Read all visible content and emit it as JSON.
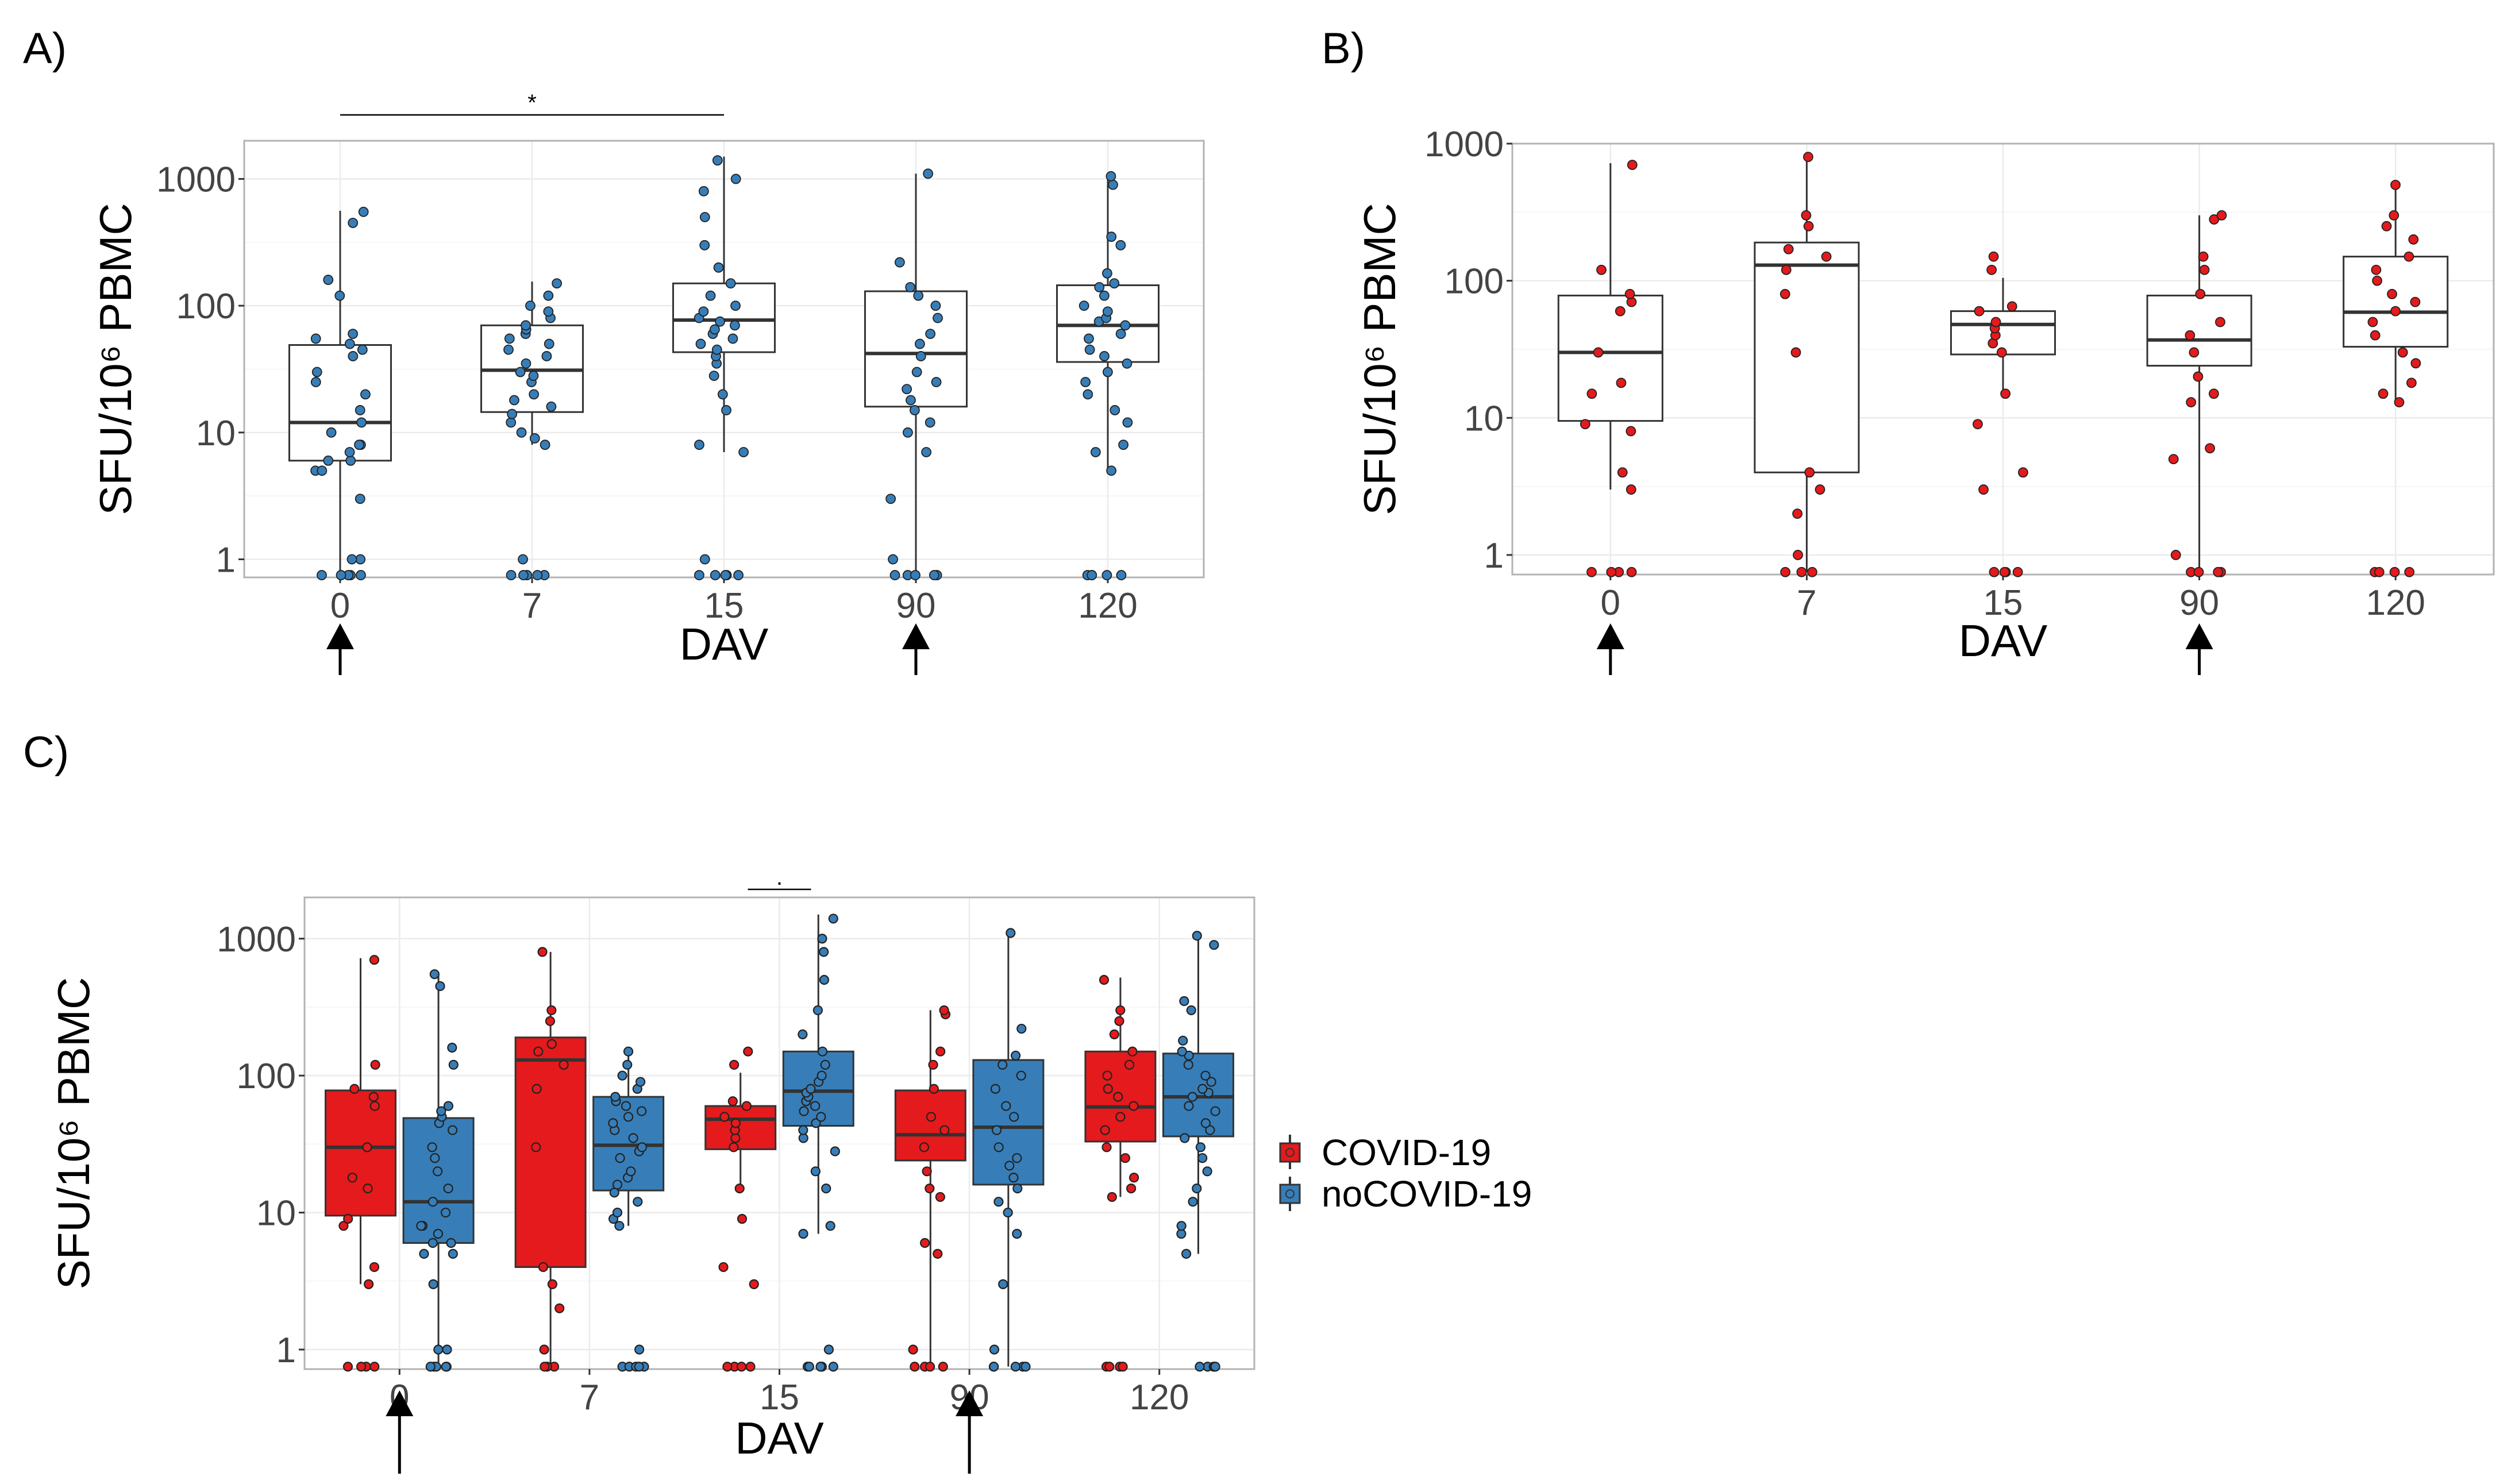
{
  "panels": {
    "A": {
      "label": "A)"
    },
    "B": {
      "label": "B)"
    },
    "C": {
      "label": "C)"
    }
  },
  "colors": {
    "covid": "#E41A1C",
    "nocovid": "#377EB8",
    "grid": "#EBEBEB",
    "frame": "#B3B3B3"
  },
  "legend": {
    "covid": "COVID-19",
    "nocovid": "noCOVID-19"
  },
  "chart_data": [
    {
      "id": "A",
      "type": "box",
      "title": "",
      "xlabel": "DAV",
      "ylabel": "SFU/10⁶ PBMC",
      "yscale": "log10",
      "ylim": [
        0.72,
        2000
      ],
      "yticks": [
        "1",
        "10",
        "100",
        "1000"
      ],
      "categories": [
        "0",
        "7",
        "15",
        "90",
        "120"
      ],
      "vaccination_arrows_at": [
        "0",
        "90"
      ],
      "significance": [
        {
          "from": "0",
          "to": "15",
          "label": "*"
        }
      ],
      "series": [
        {
          "name": "noCOVID-19",
          "color": "#377EB8",
          "boxes": [
            {
              "q1": 6,
              "median": 12,
              "q3": 49,
              "whisker_low": 0.75,
              "whisker_high": 560
            },
            {
              "q1": 14.5,
              "median": 31,
              "q3": 70,
              "whisker_low": 8,
              "whisker_high": 155
            },
            {
              "q1": 43,
              "median": 77,
              "q3": 150,
              "whisker_low": 7,
              "whisker_high": 1500
            },
            {
              "q1": 16,
              "median": 42,
              "q3": 130,
              "whisker_low": 0.75,
              "whisker_high": 1100
            },
            {
              "q1": 36,
              "median": 70,
              "q3": 145,
              "whisker_low": 5,
              "whisker_high": 1100
            }
          ],
          "points": [
            [
              0.75,
              0.75,
              0.75,
              0.75,
              0.75,
              1,
              1,
              3,
              5,
              5,
              6,
              6,
              7,
              8,
              8,
              10,
              12,
              15,
              20,
              25,
              30,
              40,
              45,
              50,
              55,
              60,
              120,
              160,
              450,
              550
            ],
            [
              0.75,
              0.75,
              0.75,
              0.75,
              0.75,
              1,
              8,
              9,
              10,
              12,
              14,
              16,
              18,
              20,
              25,
              28,
              30,
              35,
              40,
              45,
              50,
              55,
              60,
              65,
              70,
              80,
              90,
              100,
              120,
              150
            ],
            [
              0.75,
              0.75,
              0.75,
              0.75,
              0.75,
              1,
              7,
              8,
              15,
              20,
              28,
              35,
              40,
              45,
              50,
              55,
              60,
              65,
              70,
              75,
              80,
              90,
              100,
              120,
              150,
              200,
              300,
              500,
              800,
              1000,
              1400
            ],
            [
              0.75,
              0.75,
              0.75,
              0.75,
              0.75,
              1,
              3,
              7,
              10,
              12,
              15,
              18,
              22,
              25,
              30,
              40,
              50,
              60,
              80,
              100,
              120,
              140,
              220,
              1100
            ],
            [
              0.75,
              0.75,
              0.75,
              0.75,
              0.75,
              5,
              7,
              8,
              12,
              15,
              20,
              25,
              30,
              35,
              40,
              45,
              55,
              60,
              70,
              75,
              80,
              90,
              100,
              120,
              140,
              150,
              180,
              300,
              350,
              900,
              1050
            ]
          ]
        }
      ]
    },
    {
      "id": "B",
      "type": "box",
      "title": "",
      "xlabel": "DAV",
      "ylabel": "SFU/10⁶ PBMC",
      "yscale": "log10",
      "ylim": [
        0.72,
        1000
      ],
      "yticks": [
        "1",
        "10",
        "100",
        "1000"
      ],
      "categories": [
        "0",
        "7",
        "15",
        "90",
        "120"
      ],
      "vaccination_arrows_at": [
        "0",
        "90"
      ],
      "series": [
        {
          "name": "COVID-19",
          "color": "#E41A1C",
          "boxes": [
            {
              "q1": 9.5,
              "median": 30,
              "q3": 78,
              "whisker_low": 3,
              "whisker_high": 720
            },
            {
              "q1": 4,
              "median": 130,
              "q3": 190,
              "whisker_low": 0.75,
              "whisker_high": 800
            },
            {
              "q1": 29,
              "median": 48,
              "q3": 60,
              "whisker_low": 15,
              "whisker_high": 105
            },
            {
              "q1": 24,
              "median": 37,
              "q3": 78,
              "whisker_low": 0.75,
              "whisker_high": 300
            },
            {
              "q1": 33,
              "median": 59,
              "q3": 150,
              "whisker_low": 13,
              "whisker_high": 520
            }
          ],
          "points": [
            [
              0.75,
              0.75,
              0.75,
              0.75,
              3,
              4,
              8,
              9,
              15,
              18,
              30,
              60,
              70,
              80,
              120,
              700
            ],
            [
              0.75,
              0.75,
              0.75,
              1,
              2,
              3,
              4,
              30,
              80,
              120,
              150,
              170,
              250,
              300,
              800
            ],
            [
              0.75,
              0.75,
              0.75,
              0.75,
              3,
              4,
              9,
              15,
              30,
              35,
              40,
              45,
              50,
              60,
              65,
              120,
              150
            ],
            [
              0.75,
              0.75,
              0.75,
              0.75,
              1,
              5,
              6,
              13,
              15,
              20,
              30,
              40,
              50,
              80,
              120,
              150,
              280,
              300
            ],
            [
              0.75,
              0.75,
              0.75,
              0.75,
              13,
              15,
              18,
              25,
              30,
              40,
              50,
              60,
              70,
              80,
              100,
              120,
              150,
              200,
              250,
              300,
              500
            ]
          ]
        }
      ]
    },
    {
      "id": "C",
      "type": "box",
      "title": "",
      "xlabel": "DAV",
      "ylabel": "SFU/10⁶ PBMC",
      "yscale": "log10",
      "ylim": [
        0.72,
        2000
      ],
      "yticks": [
        "1",
        "10",
        "100",
        "1000"
      ],
      "categories": [
        "0",
        "7",
        "15",
        "90",
        "120"
      ],
      "vaccination_arrows_at": [
        "0",
        "90"
      ],
      "significance": [
        {
          "at": "15",
          "label": "."
        }
      ],
      "series": [
        {
          "name": "COVID-19",
          "color": "#E41A1C",
          "boxes": [
            {
              "q1": 9.5,
              "median": 30,
              "q3": 78,
              "whisker_low": 3,
              "whisker_high": 720
            },
            {
              "q1": 4,
              "median": 130,
              "q3": 190,
              "whisker_low": 0.75,
              "whisker_high": 800
            },
            {
              "q1": 29,
              "median": 48,
              "q3": 60,
              "whisker_low": 15,
              "whisker_high": 105
            },
            {
              "q1": 24,
              "median": 37,
              "q3": 78,
              "whisker_low": 0.75,
              "whisker_high": 300
            },
            {
              "q1": 33,
              "median": 59,
              "q3": 150,
              "whisker_low": 13,
              "whisker_high": 520
            }
          ],
          "points": [
            [
              0.75,
              0.75,
              0.75,
              0.75,
              3,
              4,
              8,
              9,
              15,
              18,
              30,
              60,
              70,
              80,
              120,
              700
            ],
            [
              0.75,
              0.75,
              0.75,
              1,
              2,
              3,
              4,
              30,
              80,
              120,
              150,
              170,
              250,
              300,
              800
            ],
            [
              0.75,
              0.75,
              0.75,
              0.75,
              3,
              4,
              9,
              15,
              30,
              35,
              40,
              45,
              50,
              60,
              65,
              120,
              150
            ],
            [
              0.75,
              0.75,
              0.75,
              0.75,
              1,
              5,
              6,
              13,
              15,
              20,
              30,
              40,
              50,
              80,
              120,
              150,
              280,
              300
            ],
            [
              0.75,
              0.75,
              0.75,
              0.75,
              13,
              15,
              18,
              25,
              30,
              40,
              50,
              60,
              70,
              80,
              100,
              120,
              150,
              200,
              250,
              300,
              500
            ]
          ]
        },
        {
          "name": "noCOVID-19",
          "color": "#377EB8",
          "boxes": [
            {
              "q1": 6,
              "median": 12,
              "q3": 49,
              "whisker_low": 0.75,
              "whisker_high": 560
            },
            {
              "q1": 14.5,
              "median": 31,
              "q3": 70,
              "whisker_low": 8,
              "whisker_high": 155
            },
            {
              "q1": 43,
              "median": 77,
              "q3": 150,
              "whisker_low": 7,
              "whisker_high": 1500
            },
            {
              "q1": 16,
              "median": 42,
              "q3": 130,
              "whisker_low": 0.75,
              "whisker_high": 1100
            },
            {
              "q1": 36,
              "median": 70,
              "q3": 145,
              "whisker_low": 5,
              "whisker_high": 1100
            }
          ],
          "points": [
            [
              0.75,
              0.75,
              0.75,
              0.75,
              0.75,
              1,
              1,
              3,
              5,
              5,
              6,
              6,
              7,
              8,
              8,
              10,
              12,
              15,
              20,
              25,
              30,
              40,
              45,
              50,
              55,
              60,
              120,
              160,
              450,
              550
            ],
            [
              0.75,
              0.75,
              0.75,
              0.75,
              0.75,
              1,
              8,
              9,
              10,
              12,
              14,
              16,
              18,
              20,
              25,
              28,
              30,
              35,
              40,
              45,
              50,
              55,
              60,
              65,
              70,
              80,
              90,
              100,
              120,
              150
            ],
            [
              0.75,
              0.75,
              0.75,
              0.75,
              0.75,
              1,
              7,
              8,
              15,
              20,
              28,
              35,
              40,
              45,
              50,
              55,
              60,
              65,
              70,
              75,
              80,
              90,
              100,
              120,
              150,
              200,
              300,
              500,
              800,
              1000,
              1400
            ],
            [
              0.75,
              0.75,
              0.75,
              0.75,
              0.75,
              1,
              3,
              7,
              10,
              12,
              15,
              18,
              22,
              25,
              30,
              40,
              50,
              60,
              80,
              100,
              120,
              140,
              220,
              1100
            ],
            [
              0.75,
              0.75,
              0.75,
              0.75,
              0.75,
              5,
              7,
              8,
              12,
              15,
              20,
              25,
              30,
              35,
              40,
              45,
              55,
              60,
              70,
              75,
              80,
              90,
              100,
              120,
              140,
              150,
              180,
              300,
              350,
              900,
              1050
            ]
          ]
        }
      ]
    }
  ]
}
